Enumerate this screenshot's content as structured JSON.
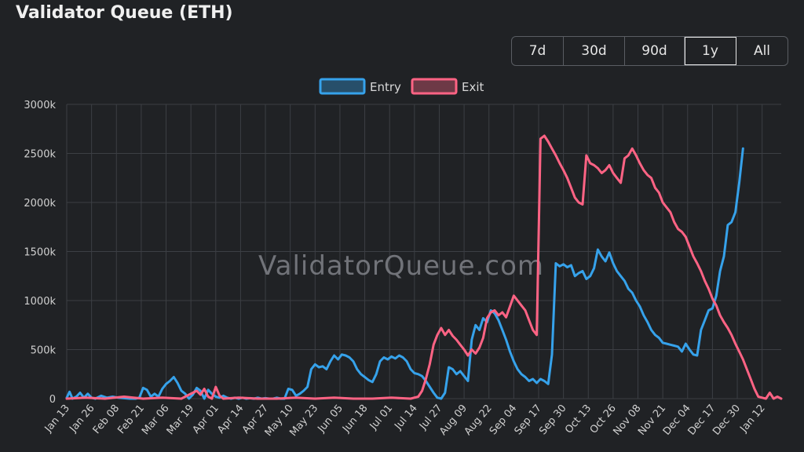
{
  "header": {
    "title": "Validator Queue (ETH)"
  },
  "range_buttons": [
    {
      "label": "7d",
      "active": false
    },
    {
      "label": "30d",
      "active": false
    },
    {
      "label": "90d",
      "active": false
    },
    {
      "label": "1y",
      "active": true
    },
    {
      "label": "All",
      "active": false
    }
  ],
  "watermark": "ValidatorQueue.com",
  "colors": {
    "entry": "#36a2eb",
    "exit": "#ff6384",
    "grid": "#3c3f44",
    "background": "#202225"
  },
  "chart_data": {
    "type": "line",
    "title": "Validator Queue (ETH)",
    "xlabel": "",
    "ylabel": "",
    "y_unit": "k",
    "ylim": [
      0,
      3000
    ],
    "yticks": [
      0,
      500,
      1000,
      1500,
      2000,
      2500,
      3000
    ],
    "ytick_labels": [
      "0",
      "500k",
      "1000k",
      "1500k",
      "2000k",
      "2500k",
      "3000k"
    ],
    "xticks": [
      "Jan 13",
      "Jan 26",
      "Feb 08",
      "Feb 21",
      "Mar 06",
      "Mar 19",
      "Apr 01",
      "Apr 14",
      "Apr 27",
      "May 10",
      "May 23",
      "Jun 05",
      "Jun 18",
      "Jul 01",
      "Jul 14",
      "Jul 27",
      "Aug 09",
      "Aug 22",
      "Sep 04",
      "Sep 17",
      "Sep 30",
      "Oct 13",
      "Oct 26",
      "Nov 08",
      "Nov 21",
      "Dec 04",
      "Dec 17",
      "Dec 30",
      "Jan 12"
    ],
    "grid": true,
    "legend_position": "top-center",
    "series": [
      {
        "name": "Entry",
        "points": [
          [
            0,
            10
          ],
          [
            1.5,
            70
          ],
          [
            3,
            0
          ],
          [
            5,
            20
          ],
          [
            7,
            60
          ],
          [
            9,
            10
          ],
          [
            11,
            50
          ],
          [
            13,
            10
          ],
          [
            15,
            0
          ],
          [
            18,
            30
          ],
          [
            21,
            10
          ],
          [
            24,
            20
          ],
          [
            27,
            10
          ],
          [
            30,
            5
          ],
          [
            33,
            0
          ],
          [
            36,
            0
          ],
          [
            38,
            10
          ],
          [
            40,
            110
          ],
          [
            42,
            90
          ],
          [
            44,
            20
          ],
          [
            46,
            50
          ],
          [
            48,
            20
          ],
          [
            50,
            100
          ],
          [
            52,
            150
          ],
          [
            54,
            180
          ],
          [
            56,
            220
          ],
          [
            58,
            160
          ],
          [
            60,
            80
          ],
          [
            62,
            50
          ],
          [
            64,
            0
          ],
          [
            66,
            40
          ],
          [
            68,
            110
          ],
          [
            70,
            80
          ],
          [
            72,
            0
          ],
          [
            74,
            90
          ],
          [
            76,
            50
          ],
          [
            78,
            20
          ],
          [
            80,
            10
          ],
          [
            82,
            30
          ],
          [
            84,
            10
          ],
          [
            86,
            0
          ],
          [
            88,
            10
          ],
          [
            90,
            0
          ],
          [
            92,
            10
          ],
          [
            94,
            0
          ],
          [
            96,
            5
          ],
          [
            98,
            0
          ],
          [
            100,
            10
          ],
          [
            102,
            0
          ],
          [
            104,
            5
          ],
          [
            106,
            0
          ],
          [
            108,
            0
          ],
          [
            110,
            10
          ],
          [
            112,
            0
          ],
          [
            114,
            0
          ],
          [
            116,
            100
          ],
          [
            118,
            90
          ],
          [
            120,
            30
          ],
          [
            122,
            50
          ],
          [
            124,
            80
          ],
          [
            126,
            120
          ],
          [
            128,
            300
          ],
          [
            130,
            350
          ],
          [
            132,
            320
          ],
          [
            134,
            330
          ],
          [
            136,
            300
          ],
          [
            138,
            380
          ],
          [
            140,
            440
          ],
          [
            142,
            400
          ],
          [
            144,
            450
          ],
          [
            146,
            440
          ],
          [
            148,
            420
          ],
          [
            150,
            380
          ],
          [
            152,
            300
          ],
          [
            154,
            250
          ],
          [
            156,
            220
          ],
          [
            158,
            190
          ],
          [
            160,
            170
          ],
          [
            162,
            250
          ],
          [
            164,
            380
          ],
          [
            166,
            420
          ],
          [
            168,
            400
          ],
          [
            170,
            430
          ],
          [
            172,
            410
          ],
          [
            174,
            440
          ],
          [
            176,
            420
          ],
          [
            178,
            380
          ],
          [
            180,
            300
          ],
          [
            182,
            260
          ],
          [
            184,
            250
          ],
          [
            186,
            230
          ],
          [
            188,
            180
          ],
          [
            190,
            120
          ],
          [
            192,
            60
          ],
          [
            194,
            10
          ],
          [
            196,
            0
          ],
          [
            198,
            60
          ],
          [
            200,
            320
          ],
          [
            202,
            300
          ],
          [
            204,
            250
          ],
          [
            206,
            280
          ],
          [
            208,
            230
          ],
          [
            210,
            180
          ],
          [
            212,
            600
          ],
          [
            214,
            750
          ],
          [
            216,
            700
          ],
          [
            218,
            820
          ],
          [
            220,
            780
          ],
          [
            222,
            900
          ],
          [
            224,
            870
          ],
          [
            226,
            800
          ],
          [
            228,
            700
          ],
          [
            230,
            600
          ],
          [
            232,
            480
          ],
          [
            234,
            380
          ],
          [
            236,
            300
          ],
          [
            238,
            250
          ],
          [
            240,
            220
          ],
          [
            242,
            180
          ],
          [
            244,
            200
          ],
          [
            246,
            160
          ],
          [
            248,
            200
          ],
          [
            250,
            180
          ],
          [
            252,
            150
          ],
          [
            254,
            450
          ],
          [
            256,
            1380
          ],
          [
            258,
            1350
          ],
          [
            260,
            1370
          ],
          [
            262,
            1340
          ],
          [
            264,
            1360
          ],
          [
            266,
            1250
          ],
          [
            268,
            1280
          ],
          [
            270,
            1300
          ],
          [
            272,
            1220
          ],
          [
            274,
            1250
          ],
          [
            276,
            1330
          ],
          [
            278,
            1520
          ],
          [
            280,
            1450
          ],
          [
            282,
            1400
          ],
          [
            284,
            1490
          ],
          [
            286,
            1380
          ],
          [
            288,
            1300
          ],
          [
            290,
            1250
          ],
          [
            292,
            1200
          ],
          [
            294,
            1120
          ],
          [
            296,
            1080
          ],
          [
            298,
            1000
          ],
          [
            300,
            940
          ],
          [
            302,
            850
          ],
          [
            304,
            780
          ],
          [
            306,
            700
          ],
          [
            308,
            650
          ],
          [
            310,
            620
          ],
          [
            312,
            570
          ],
          [
            314,
            560
          ],
          [
            316,
            550
          ],
          [
            318,
            540
          ],
          [
            320,
            530
          ],
          [
            322,
            480
          ],
          [
            324,
            560
          ],
          [
            326,
            500
          ],
          [
            328,
            450
          ],
          [
            330,
            440
          ],
          [
            332,
            700
          ],
          [
            334,
            800
          ],
          [
            336,
            900
          ],
          [
            338,
            920
          ],
          [
            340,
            1050
          ],
          [
            342,
            1300
          ],
          [
            344,
            1450
          ],
          [
            346,
            1770
          ],
          [
            348,
            1800
          ],
          [
            350,
            1900
          ],
          [
            352,
            2200
          ],
          [
            354,
            2550
          ]
        ]
      },
      {
        "name": "Exit",
        "points": [
          [
            0,
            0
          ],
          [
            10,
            10
          ],
          [
            20,
            0
          ],
          [
            30,
            20
          ],
          [
            40,
            0
          ],
          [
            50,
            10
          ],
          [
            60,
            0
          ],
          [
            68,
            80
          ],
          [
            70,
            40
          ],
          [
            72,
            100
          ],
          [
            74,
            20
          ],
          [
            76,
            0
          ],
          [
            78,
            120
          ],
          [
            80,
            30
          ],
          [
            82,
            0
          ],
          [
            90,
            10
          ],
          [
            100,
            0
          ],
          [
            110,
            0
          ],
          [
            120,
            10
          ],
          [
            130,
            0
          ],
          [
            140,
            10
          ],
          [
            150,
            0
          ],
          [
            160,
            0
          ],
          [
            170,
            10
          ],
          [
            180,
            0
          ],
          [
            184,
            20
          ],
          [
            186,
            80
          ],
          [
            188,
            200
          ],
          [
            190,
            350
          ],
          [
            192,
            550
          ],
          [
            194,
            650
          ],
          [
            196,
            720
          ],
          [
            198,
            650
          ],
          [
            200,
            700
          ],
          [
            202,
            640
          ],
          [
            204,
            600
          ],
          [
            206,
            550
          ],
          [
            208,
            500
          ],
          [
            210,
            440
          ],
          [
            212,
            500
          ],
          [
            214,
            460
          ],
          [
            216,
            520
          ],
          [
            218,
            620
          ],
          [
            220,
            820
          ],
          [
            222,
            880
          ],
          [
            224,
            900
          ],
          [
            226,
            850
          ],
          [
            228,
            880
          ],
          [
            230,
            830
          ],
          [
            232,
            940
          ],
          [
            234,
            1050
          ],
          [
            236,
            1000
          ],
          [
            238,
            950
          ],
          [
            240,
            900
          ],
          [
            242,
            800
          ],
          [
            244,
            700
          ],
          [
            246,
            650
          ],
          [
            248,
            2650
          ],
          [
            250,
            2680
          ],
          [
            252,
            2620
          ],
          [
            254,
            2550
          ],
          [
            256,
            2480
          ],
          [
            258,
            2400
          ],
          [
            260,
            2330
          ],
          [
            262,
            2250
          ],
          [
            264,
            2150
          ],
          [
            266,
            2050
          ],
          [
            268,
            2000
          ],
          [
            270,
            1980
          ],
          [
            272,
            2480
          ],
          [
            274,
            2400
          ],
          [
            276,
            2380
          ],
          [
            278,
            2350
          ],
          [
            280,
            2300
          ],
          [
            282,
            2330
          ],
          [
            284,
            2380
          ],
          [
            286,
            2300
          ],
          [
            288,
            2250
          ],
          [
            290,
            2200
          ],
          [
            292,
            2450
          ],
          [
            294,
            2480
          ],
          [
            296,
            2550
          ],
          [
            298,
            2480
          ],
          [
            300,
            2400
          ],
          [
            302,
            2330
          ],
          [
            304,
            2280
          ],
          [
            306,
            2250
          ],
          [
            308,
            2150
          ],
          [
            310,
            2100
          ],
          [
            312,
            2000
          ],
          [
            314,
            1950
          ],
          [
            316,
            1900
          ],
          [
            318,
            1800
          ],
          [
            320,
            1730
          ],
          [
            322,
            1700
          ],
          [
            324,
            1650
          ],
          [
            326,
            1550
          ],
          [
            328,
            1450
          ],
          [
            330,
            1380
          ],
          [
            332,
            1300
          ],
          [
            334,
            1200
          ],
          [
            336,
            1120
          ],
          [
            338,
            1020
          ],
          [
            340,
            950
          ],
          [
            342,
            850
          ],
          [
            344,
            780
          ],
          [
            346,
            720
          ],
          [
            348,
            650
          ],
          [
            350,
            560
          ],
          [
            352,
            480
          ],
          [
            354,
            400
          ],
          [
            356,
            300
          ],
          [
            358,
            200
          ],
          [
            360,
            100
          ],
          [
            362,
            20
          ],
          [
            364,
            10
          ],
          [
            366,
            0
          ],
          [
            368,
            60
          ],
          [
            370,
            0
          ],
          [
            372,
            20
          ],
          [
            374,
            0
          ]
        ]
      }
    ]
  }
}
